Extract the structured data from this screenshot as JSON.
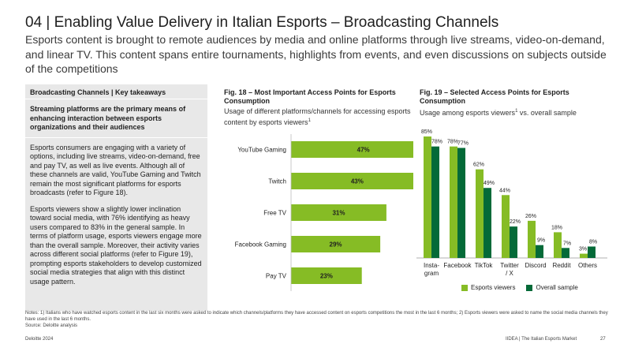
{
  "header": {
    "title": "04 | Enabling Value Delivery in Italian Esports – Broadcasting Channels",
    "subtitle": "Esports content is brought to remote audiences by media and online platforms through live streams, video-on-demand, and linear TV. This content spans entire tournaments, highlights from events, and even discussions on subjects outside of the competitions"
  },
  "takeaways": {
    "header": "Broadcasting Channels | Key takeaways",
    "lead": "Streaming platforms are the primary means of enhancing interaction between esports organizations and their audiences",
    "para1": "Esports consumers are engaging with a variety of options, including live streams, video-on-demand, free and pay TV, as well as live events. Although all of these channels are valid, YouTube Gaming and Twitch remain the most significant platforms for esports broadcasts (refer to Figure 18).",
    "para2": "Esports viewers show a slightly lower inclination toward social media, with 76% identifying as heavy users compared to 83% in the general sample. In terms of platform usage, esports viewers engage more than the overall sample. Moreover, their activity varies across different social platforms (refer to Figure 19), prompting esports stakeholders to develop customized social media strategies that align with this distinct usage pattern."
  },
  "fig18": {
    "title": "Fig. 18 – Most Important Access Points for Esports Consumption",
    "subtitle": "Usage of different platforms/channels for accessing esports content by esports viewers",
    "sup": "1"
  },
  "fig19": {
    "title": "Fig. 19 – Selected Access Points for Esports Consumption",
    "subtitle_a": "Usage among esports viewers",
    "sup": "1",
    "subtitle_b": " vs. overall sample"
  },
  "chart_data": [
    {
      "type": "bar",
      "orientation": "horizontal",
      "categories": [
        "YouTube Gaming",
        "Twitch",
        "Free TV",
        "Facebook Gaming",
        "Pay TV"
      ],
      "values": [
        47,
        43,
        31,
        29,
        23
      ],
      "value_labels": [
        "47%",
        "43%",
        "31%",
        "29%",
        "23%"
      ],
      "color": "#86bc25",
      "xlim": [
        0,
        50
      ]
    },
    {
      "type": "bar",
      "orientation": "vertical",
      "categories": [
        "Insta-\ngram",
        "Facebook",
        "TikTok",
        "Twitter\n/ X",
        "Discord",
        "Reddit",
        "Others"
      ],
      "series": [
        {
          "name": "Esports viewers",
          "color": "#86bc25",
          "values": [
            85,
            78,
            62,
            44,
            26,
            18,
            3
          ],
          "labels": [
            "85%",
            "78%",
            "62%",
            "44%",
            "26%",
            "18%",
            "3%"
          ]
        },
        {
          "name": "Overall sample",
          "color": "#046a38",
          "values": [
            78,
            77,
            49,
            22,
            9,
            7,
            8
          ],
          "labels": [
            "78%",
            "77%",
            "49%",
            "22%",
            "9%",
            "7%",
            "8%"
          ]
        }
      ],
      "ylim": [
        0,
        85
      ]
    }
  ],
  "notes": {
    "line1": "Notes: 1) Italians who have watched esports content in the last six months were asked to indicate which channels/platforms they have accessed content on esports competitions the most in the last 6 months; 2) Esports viewers were asked to name the social media channels they have used in the last 6 months.",
    "source": "Source: Deloitte analysis"
  },
  "footer": {
    "left": "Deloitte 2024",
    "right": "IIDEA | The Italian Esports Market",
    "page": "27"
  }
}
